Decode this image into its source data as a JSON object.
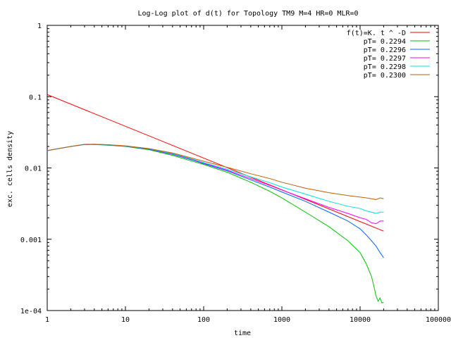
{
  "chart_data": {
    "type": "line",
    "title": "Log-Log plot of d(t) for Topology TM9 M=4 HR=0 MLR=0",
    "xlabel": "time",
    "ylabel": "exc. cells density",
    "xscale": "log",
    "yscale": "log",
    "xlim": [
      1,
      100000
    ],
    "ylim": [
      0.0001,
      1
    ],
    "x_ticks": [
      1,
      10,
      100,
      1000,
      10000,
      100000
    ],
    "x_tick_labels": [
      "1",
      "10",
      "100",
      "1000",
      "10000",
      "100000"
    ],
    "y_ticks": [
      1,
      0.1,
      0.01,
      0.001,
      0.0001
    ],
    "y_tick_labels": [
      "1",
      "0.1",
      "0.01",
      "0.001",
      "1e-04"
    ],
    "grid": false,
    "legend_position": "top-right",
    "series": [
      {
        "name": "f(t)=K. t ^ -D",
        "color": "#ff0000",
        "x": [
          1,
          20000
        ],
        "y": [
          0.107,
          0.0013
        ]
      },
      {
        "name": "pT= 0.2294",
        "color": "#00c000",
        "x": [
          1,
          2,
          3,
          4,
          6,
          10,
          20,
          40,
          70,
          100,
          200,
          400,
          700,
          1000,
          2000,
          4000,
          7000,
          10000,
          12000,
          14000,
          15000,
          16000,
          17000,
          18000,
          19000,
          20000
        ],
        "y": [
          0.0175,
          0.02,
          0.0213,
          0.0213,
          0.0208,
          0.02,
          0.018,
          0.015,
          0.0125,
          0.0112,
          0.0087,
          0.0063,
          0.0047,
          0.0038,
          0.0024,
          0.0015,
          0.00095,
          0.00065,
          0.00045,
          0.0003,
          0.00022,
          0.00016,
          0.000135,
          0.00015,
          0.000128,
          0.00013
        ]
      },
      {
        "name": "pT= 0.2296",
        "color": "#0066ff",
        "x": [
          1,
          2,
          3,
          4,
          6,
          10,
          20,
          40,
          70,
          100,
          200,
          400,
          700,
          1000,
          2000,
          4000,
          7000,
          10000,
          12000,
          14000,
          16000,
          18000,
          20000
        ],
        "y": [
          0.0175,
          0.02,
          0.0213,
          0.0214,
          0.021,
          0.0202,
          0.0183,
          0.0155,
          0.013,
          0.0115,
          0.0091,
          0.0068,
          0.0054,
          0.0046,
          0.0034,
          0.0024,
          0.0018,
          0.0014,
          0.00115,
          0.00095,
          0.0008,
          0.00065,
          0.00055
        ]
      },
      {
        "name": "pT= 0.2297",
        "color": "#ff00ff",
        "x": [
          1,
          2,
          3,
          4,
          6,
          10,
          20,
          40,
          70,
          100,
          200,
          400,
          700,
          1000,
          2000,
          4000,
          7000,
          10000,
          12000,
          14000,
          16000,
          18000,
          20000
        ],
        "y": [
          0.0175,
          0.02,
          0.0214,
          0.0215,
          0.0211,
          0.0203,
          0.0185,
          0.0157,
          0.0132,
          0.0117,
          0.0093,
          0.0071,
          0.0057,
          0.0049,
          0.0037,
          0.0028,
          0.0023,
          0.002,
          0.0019,
          0.0017,
          0.00165,
          0.0018,
          0.0018
        ]
      },
      {
        "name": "pT= 0.2298",
        "color": "#00e0e0",
        "x": [
          1,
          2,
          3,
          4,
          6,
          10,
          20,
          40,
          70,
          100,
          200,
          400,
          700,
          1000,
          2000,
          4000,
          7000,
          10000,
          12000,
          14000,
          16000,
          18000,
          20000
        ],
        "y": [
          0.0175,
          0.02,
          0.0214,
          0.0215,
          0.0211,
          0.0203,
          0.0186,
          0.0159,
          0.0134,
          0.0119,
          0.0096,
          0.0075,
          0.0062,
          0.0054,
          0.0043,
          0.0034,
          0.0029,
          0.0027,
          0.0025,
          0.0024,
          0.0023,
          0.0024,
          0.0024
        ]
      },
      {
        "name": "pT= 0.2300",
        "color": "#c06000",
        "x": [
          1,
          2,
          3,
          4,
          6,
          10,
          20,
          40,
          70,
          100,
          200,
          400,
          700,
          1000,
          2000,
          4000,
          7000,
          10000,
          12000,
          14000,
          16000,
          18000,
          20000
        ],
        "y": [
          0.0175,
          0.02,
          0.0214,
          0.0215,
          0.0212,
          0.0204,
          0.0187,
          0.0162,
          0.0138,
          0.0124,
          0.0102,
          0.0083,
          0.0071,
          0.0063,
          0.0052,
          0.0045,
          0.0041,
          0.0039,
          0.0038,
          0.0037,
          0.0036,
          0.0038,
          0.0037
        ]
      }
    ]
  }
}
